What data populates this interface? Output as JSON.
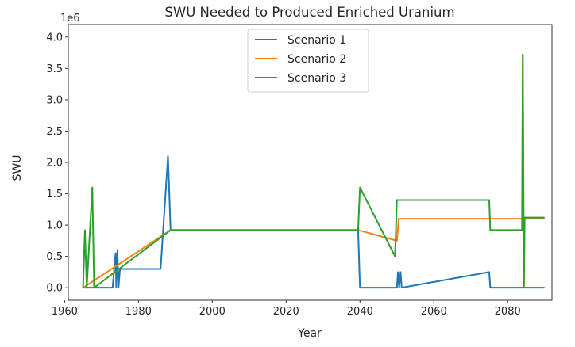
{
  "chart_data": {
    "type": "line",
    "title": "SWU Needed to Produced Enriched Uranium",
    "xlabel": "Year",
    "ylabel": "SWU",
    "y_offset_label": "1e6",
    "xlim": [
      1961,
      2092
    ],
    "ylim": [
      -0.2,
      4.2
    ],
    "x_ticks": [
      1960,
      1980,
      2000,
      2020,
      2040,
      2060,
      2080
    ],
    "y_ticks": [
      0.0,
      0.5,
      1.0,
      1.5,
      2.0,
      2.5,
      3.0,
      3.5,
      4.0
    ],
    "y_tick_labels": [
      "0.0",
      "0.5",
      "1.0",
      "1.5",
      "2.0",
      "2.5",
      "3.0",
      "3.5",
      "4.0"
    ],
    "grid": false,
    "legend_position": "top-center",
    "series": [
      {
        "name": "Scenario 1",
        "color": "#1f77b4",
        "points": [
          [
            1965,
            0
          ],
          [
            1973,
            0
          ],
          [
            1973.8,
            0.55
          ],
          [
            1974,
            0
          ],
          [
            1974.3,
            0.6
          ],
          [
            1974.6,
            0
          ],
          [
            1975,
            0.3
          ],
          [
            1986,
            0.3
          ],
          [
            1988,
            2.1
          ],
          [
            1988.7,
            0.92
          ],
          [
            2039.5,
            0.92
          ],
          [
            2040,
            0
          ],
          [
            2050,
            0
          ],
          [
            2050.3,
            0.25
          ],
          [
            2050.6,
            0
          ],
          [
            2051,
            0.25
          ],
          [
            2051.3,
            0
          ],
          [
            2075,
            0.25
          ],
          [
            2075.3,
            0
          ],
          [
            2090,
            0
          ]
        ]
      },
      {
        "name": "Scenario 2",
        "color": "#ff7f0e",
        "points": [
          [
            1965,
            0
          ],
          [
            1988.7,
            0.92
          ],
          [
            2039.5,
            0.92
          ],
          [
            2050,
            0.75
          ],
          [
            2050.5,
            1.1
          ],
          [
            2075,
            1.1
          ],
          [
            2083.9,
            1.1
          ],
          [
            2084.1,
            3.72
          ],
          [
            2084.4,
            0
          ],
          [
            2084.6,
            1.1
          ],
          [
            2090,
            1.1
          ]
        ]
      },
      {
        "name": "Scenario 3",
        "color": "#2ca02c",
        "points": [
          [
            1965,
            0
          ],
          [
            1965.5,
            0.92
          ],
          [
            1966,
            0
          ],
          [
            1967.5,
            1.6
          ],
          [
            1968,
            0
          ],
          [
            1988.7,
            0.92
          ],
          [
            2039.5,
            0.92
          ],
          [
            2040,
            1.6
          ],
          [
            2049.5,
            0.5
          ],
          [
            2050,
            1.4
          ],
          [
            2075,
            1.4
          ],
          [
            2075.3,
            0.92
          ],
          [
            2083.9,
            0.92
          ],
          [
            2084.1,
            3.72
          ],
          [
            2084.4,
            0
          ],
          [
            2084.6,
            1.12
          ],
          [
            2090,
            1.12
          ]
        ]
      }
    ]
  }
}
